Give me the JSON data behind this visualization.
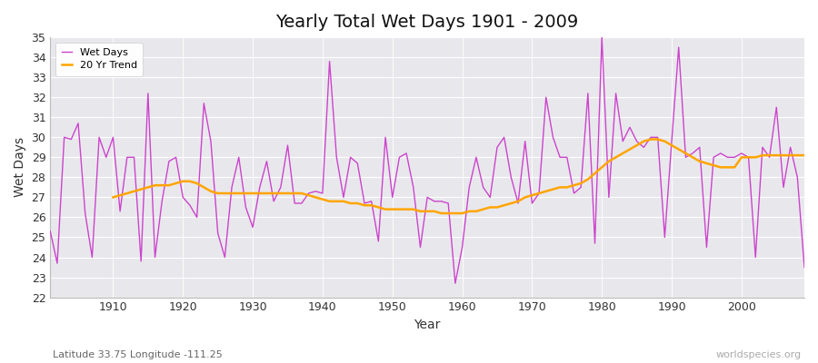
{
  "title": "Yearly Total Wet Days 1901 - 2009",
  "xlabel": "Year",
  "ylabel": "Wet Days",
  "subtitle": "Latitude 33.75 Longitude -111.25",
  "watermark": "worldspecies.org",
  "line_color": "#CC44CC",
  "trend_color": "#FFA500",
  "bg_color": "#E8E8EC",
  "ylim": [
    22,
    35
  ],
  "xlim": [
    1901,
    2009
  ],
  "xticks": [
    1910,
    1920,
    1930,
    1940,
    1950,
    1960,
    1970,
    1980,
    1990,
    2000
  ],
  "yticks": [
    22,
    23,
    24,
    25,
    26,
    27,
    28,
    29,
    30,
    31,
    32,
    33,
    34,
    35
  ],
  "years": [
    1901,
    1902,
    1903,
    1904,
    1905,
    1906,
    1907,
    1908,
    1909,
    1910,
    1911,
    1912,
    1913,
    1914,
    1915,
    1916,
    1917,
    1918,
    1919,
    1920,
    1921,
    1922,
    1923,
    1924,
    1925,
    1926,
    1927,
    1928,
    1929,
    1930,
    1931,
    1932,
    1933,
    1934,
    1935,
    1936,
    1937,
    1938,
    1939,
    1940,
    1941,
    1942,
    1943,
    1944,
    1945,
    1946,
    1947,
    1948,
    1949,
    1950,
    1951,
    1952,
    1953,
    1954,
    1955,
    1956,
    1957,
    1958,
    1959,
    1960,
    1961,
    1962,
    1963,
    1964,
    1965,
    1966,
    1967,
    1968,
    1969,
    1970,
    1971,
    1972,
    1973,
    1974,
    1975,
    1976,
    1977,
    1978,
    1979,
    1980,
    1981,
    1982,
    1983,
    1984,
    1985,
    1986,
    1987,
    1988,
    1989,
    1990,
    1991,
    1992,
    1993,
    1994,
    1995,
    1996,
    1997,
    1998,
    1999,
    2000,
    2001,
    2002,
    2003,
    2004,
    2005,
    2006,
    2007,
    2008,
    2009
  ],
  "wet_days": [
    25.3,
    23.7,
    30.0,
    29.9,
    30.7,
    26.2,
    24.0,
    30.0,
    29.0,
    30.0,
    26.3,
    29.0,
    29.0,
    23.8,
    32.2,
    24.0,
    26.8,
    28.8,
    29.0,
    27.0,
    26.6,
    26.0,
    31.7,
    29.8,
    25.2,
    24.0,
    27.5,
    29.0,
    26.5,
    25.5,
    27.5,
    28.8,
    26.8,
    27.5,
    29.6,
    26.7,
    26.7,
    27.2,
    27.3,
    27.2,
    33.8,
    29.0,
    27.0,
    29.0,
    28.7,
    26.7,
    26.8,
    24.8,
    30.0,
    27.0,
    29.0,
    29.2,
    27.5,
    24.5,
    27.0,
    26.8,
    26.8,
    26.7,
    22.7,
    24.5,
    27.5,
    29.0,
    27.5,
    27.0,
    29.5,
    30.0,
    28.0,
    26.7,
    29.8,
    26.7,
    27.2,
    32.0,
    30.0,
    29.0,
    29.0,
    27.2,
    27.5,
    32.2,
    24.7,
    35.0,
    27.0,
    32.2,
    29.8,
    30.5,
    29.8,
    29.5,
    30.0,
    30.0,
    25.0,
    29.8,
    34.5,
    29.0,
    29.2,
    29.5,
    24.5,
    29.0,
    29.2,
    29.0,
    29.0,
    29.2,
    29.0,
    24.0,
    29.5,
    29.0,
    31.5,
    27.5,
    29.5,
    28.0,
    23.5
  ],
  "trend_years": [
    1910,
    1911,
    1912,
    1913,
    1914,
    1915,
    1916,
    1917,
    1918,
    1919,
    1920,
    1921,
    1922,
    1923,
    1924,
    1925,
    1926,
    1927,
    1928,
    1929,
    1930,
    1931,
    1932,
    1933,
    1934,
    1935,
    1936,
    1937,
    1938,
    1939,
    1940,
    1941,
    1942,
    1943,
    1944,
    1945,
    1946,
    1947,
    1948,
    1949,
    1950,
    1951,
    1952,
    1953,
    1954,
    1955,
    1956,
    1957,
    1958,
    1959,
    1960,
    1961,
    1962,
    1963,
    1964,
    1965,
    1966,
    1967,
    1968,
    1969,
    1970,
    1971,
    1972,
    1973,
    1974,
    1975,
    1976,
    1977,
    1978,
    1979,
    1980,
    1981,
    1982,
    1983,
    1984,
    1985,
    1986,
    1987,
    1988,
    1989,
    1990,
    1991,
    1992,
    1993,
    1994,
    1995,
    1996,
    1997,
    1998,
    1999,
    2000,
    2001,
    2002,
    2003,
    2004,
    2005,
    2006,
    2007,
    2008,
    2009
  ],
  "trend_values": [
    27.0,
    27.1,
    27.2,
    27.3,
    27.4,
    27.5,
    27.6,
    27.6,
    27.6,
    27.7,
    27.8,
    27.8,
    27.7,
    27.5,
    27.3,
    27.2,
    27.2,
    27.2,
    27.2,
    27.2,
    27.2,
    27.2,
    27.2,
    27.2,
    27.2,
    27.2,
    27.2,
    27.2,
    27.1,
    27.0,
    26.9,
    26.8,
    26.8,
    26.8,
    26.7,
    26.7,
    26.6,
    26.6,
    26.5,
    26.4,
    26.4,
    26.4,
    26.4,
    26.4,
    26.3,
    26.3,
    26.3,
    26.2,
    26.2,
    26.2,
    26.2,
    26.3,
    26.3,
    26.4,
    26.5,
    26.5,
    26.6,
    26.7,
    26.8,
    27.0,
    27.1,
    27.2,
    27.3,
    27.4,
    27.5,
    27.5,
    27.6,
    27.7,
    27.9,
    28.2,
    28.5,
    28.8,
    29.0,
    29.2,
    29.4,
    29.6,
    29.8,
    29.9,
    29.9,
    29.8,
    29.6,
    29.4,
    29.2,
    29.0,
    28.8,
    28.7,
    28.6,
    28.5,
    28.5,
    28.5,
    29.0,
    29.0,
    29.0,
    29.1,
    29.1,
    29.1,
    29.1,
    29.1,
    29.1,
    29.1
  ]
}
